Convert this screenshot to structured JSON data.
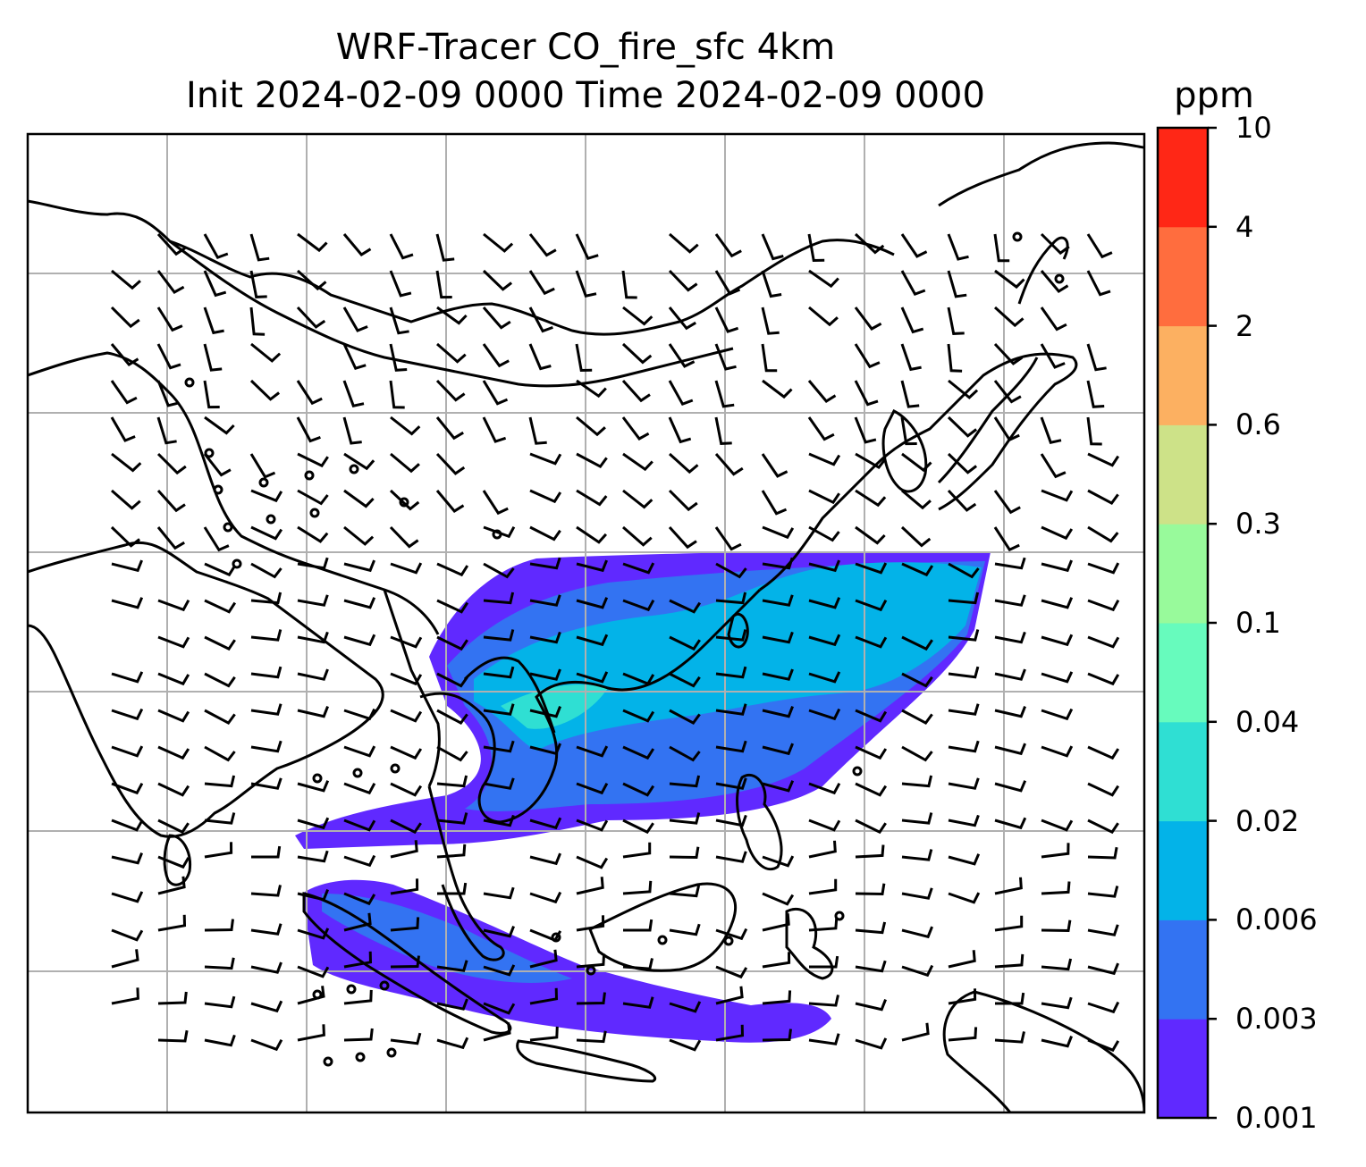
{
  "title": {
    "line1": "WRF-Tracer CO_fire_sfc 4km",
    "line2": "Init 2024-02-09 0000 Time 2024-02-09 0000"
  },
  "colorbar": {
    "unit": "ppm",
    "levels": [
      "0.001",
      "0.003",
      "0.006",
      "0.02",
      "0.04",
      "0.1",
      "0.3",
      "0.6",
      "2",
      "4",
      "10"
    ],
    "colors": [
      "#6029ff",
      "#3373f2",
      "#03b3e8",
      "#2fdfd3",
      "#67fbbd",
      "#98fa9b",
      "#cde288",
      "#fcb061",
      "#ff6d3e",
      "#ff2716"
    ]
  },
  "map": {
    "gridlines": true,
    "layers": [
      "coastlines",
      "country-borders",
      "wind-barbs",
      "co-fire-concentration"
    ]
  }
}
